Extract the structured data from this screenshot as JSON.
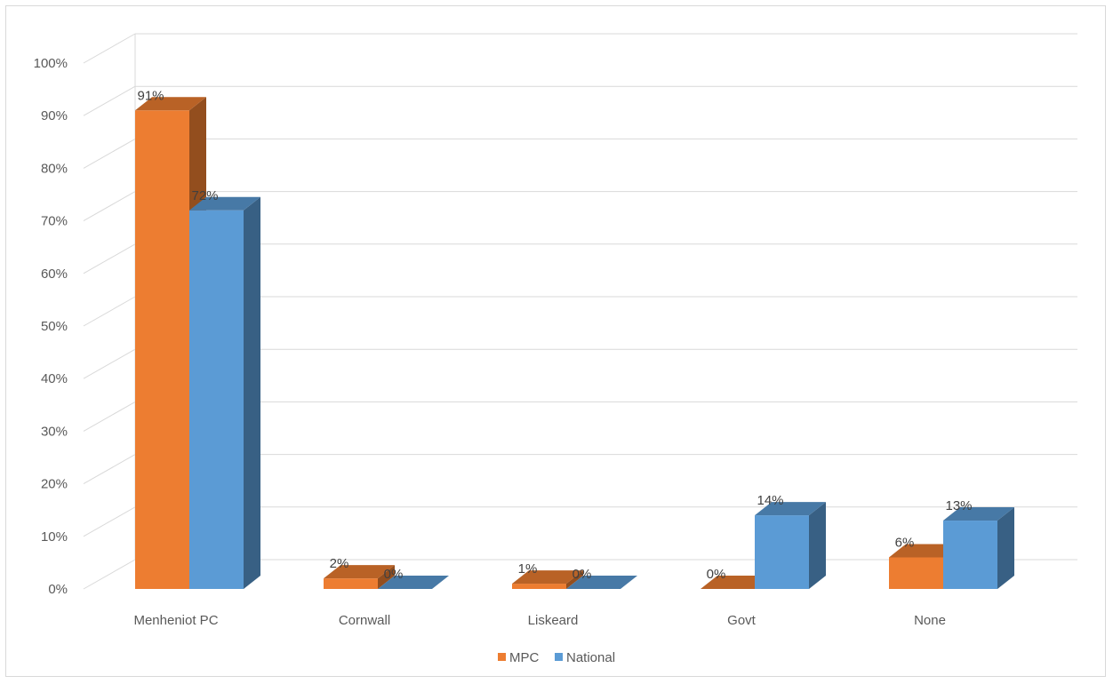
{
  "chart_data": {
    "type": "bar",
    "title": "",
    "xlabel": "",
    "ylabel": "",
    "categories": [
      "Menheniot PC",
      "Cornwall",
      "Liskeard",
      "Govt",
      "None"
    ],
    "series": [
      {
        "name": "MPC",
        "values": [
          91,
          2,
          1,
          0,
          6
        ],
        "labels": [
          "91%",
          "2%",
          "1%",
          "0%",
          "6%"
        ],
        "color": "#ed7d31"
      },
      {
        "name": "National",
        "values": [
          72,
          0,
          0,
          14,
          13
        ],
        "labels": [
          "72%",
          "0%",
          "0%",
          "14%",
          "13%"
        ],
        "color": "#5b9bd5"
      }
    ],
    "ylim": [
      0,
      100
    ],
    "yticks": [
      "0%",
      "10%",
      "20%",
      "30%",
      "40%",
      "50%",
      "60%",
      "70%",
      "80%",
      "90%",
      "100%"
    ],
    "grid": true,
    "legend_position": "bottom",
    "style": "3d-column"
  }
}
